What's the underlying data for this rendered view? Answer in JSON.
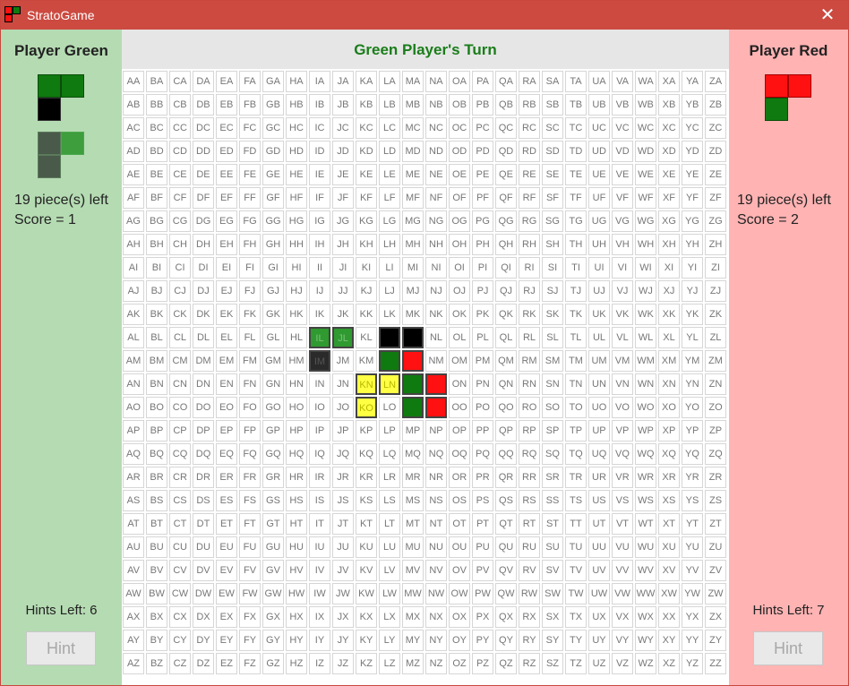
{
  "window": {
    "title": "StratoGame",
    "close_glyph": "✕"
  },
  "turn": "Green Player's Turn",
  "players": {
    "green": {
      "name": "Player Green",
      "pieces_left": "19 piece(s) left",
      "score": "Score = 1",
      "hints_left": "Hints Left: 6",
      "hint_label": "Hint",
      "color": "#0f7a0f"
    },
    "red": {
      "name": "Player Red",
      "pieces_left": "19 piece(s) left",
      "score": "Score = 2",
      "hints_left": "Hints Left: 7",
      "hint_label": "Hint",
      "color": "#ff1111"
    }
  },
  "board": {
    "columns": [
      "A",
      "B",
      "C",
      "D",
      "E",
      "F",
      "G",
      "H",
      "I",
      "J",
      "K",
      "L",
      "M",
      "N",
      "O",
      "P",
      "Q",
      "R",
      "S",
      "T",
      "U",
      "V",
      "W",
      "X",
      "Y",
      "Z"
    ],
    "rows": [
      "A",
      "B",
      "C",
      "D",
      "E",
      "F",
      "G",
      "H",
      "I",
      "J",
      "K",
      "L",
      "M",
      "N",
      "O",
      "P",
      "Q",
      "R",
      "S",
      "T",
      "U",
      "V",
      "W",
      "X",
      "Y",
      "Z"
    ],
    "filled": {
      "IL": "lightgreen",
      "JL": "lightgreen",
      "IM": "darkgray",
      "LL": "black",
      "ML": "black",
      "LM": "green",
      "MM": "red",
      "MN": "green",
      "NN": "red",
      "MO": "green",
      "NO": "red",
      "KN": "yellow",
      "LN": "yellow",
      "KO": "yellow"
    },
    "fill_colors": {
      "lightgreen": "#2f9a2f",
      "darkgray": "#2a2a2a",
      "black": "#000000",
      "green": "#0f7a0f",
      "red": "#ff1111",
      "yellow": "#ffff44"
    }
  },
  "icons": [
    "app-icon",
    "close-icon"
  ]
}
